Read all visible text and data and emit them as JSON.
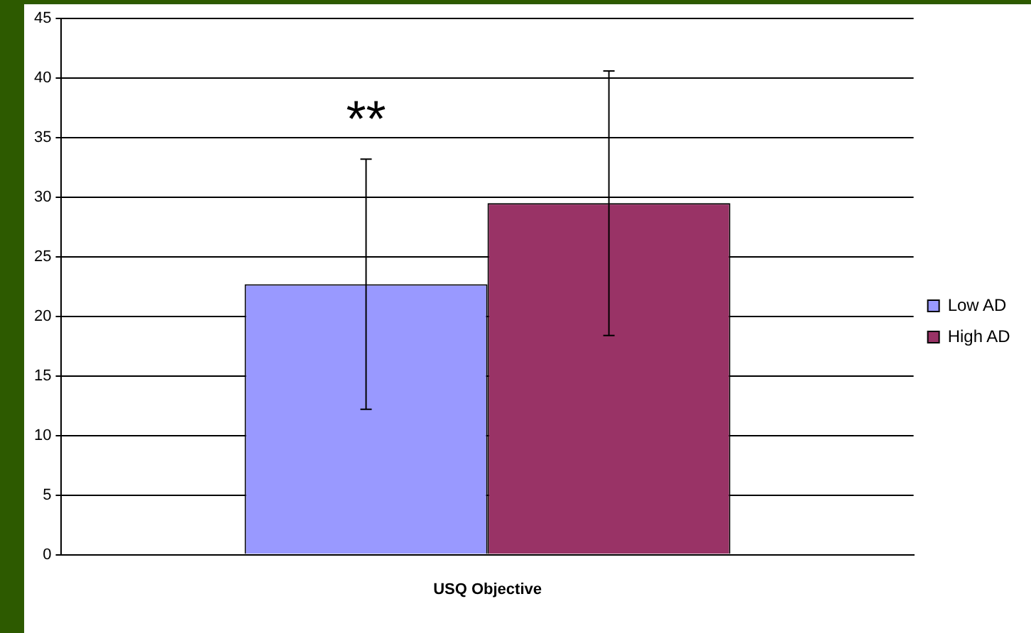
{
  "chart_data": {
    "type": "bar",
    "categories": [
      "USQ Objective"
    ],
    "series": [
      {
        "name": "Low AD",
        "color": "#9999ff",
        "values": [
          22.7
        ],
        "errors": [
          10.5
        ]
      },
      {
        "name": "High AD",
        "color": "#993366",
        "values": [
          29.5
        ],
        "errors": [
          11.1
        ]
      }
    ],
    "ylim": [
      0,
      45
    ],
    "yticks": [
      0,
      5,
      10,
      15,
      20,
      25,
      30,
      35,
      40,
      45
    ],
    "grid": "y",
    "legend": "right",
    "annotations": [
      "**"
    ]
  }
}
